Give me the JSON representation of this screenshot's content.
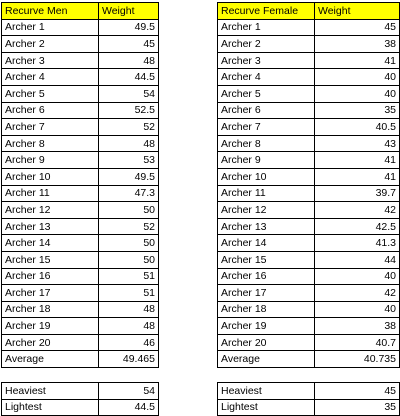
{
  "men": {
    "header": {
      "name": "Recurve Men",
      "weight": "Weight"
    },
    "rows": [
      {
        "name": "Archer 1",
        "weight": "49.5"
      },
      {
        "name": "Archer 2",
        "weight": "45"
      },
      {
        "name": "Archer 3",
        "weight": "48"
      },
      {
        "name": "Archer 4",
        "weight": "44.5"
      },
      {
        "name": "Archer 5",
        "weight": "54"
      },
      {
        "name": "Archer 6",
        "weight": "52.5"
      },
      {
        "name": "Archer 7",
        "weight": "52"
      },
      {
        "name": "Archer 8",
        "weight": "48"
      },
      {
        "name": "Archer 9",
        "weight": "53"
      },
      {
        "name": "Archer 10",
        "weight": "49.5"
      },
      {
        "name": "Archer 11",
        "weight": "47.3"
      },
      {
        "name": "Archer 12",
        "weight": "50"
      },
      {
        "name": "Archer 13",
        "weight": "52"
      },
      {
        "name": "Archer 14",
        "weight": "50"
      },
      {
        "name": "Archer 15",
        "weight": "50"
      },
      {
        "name": "Archer 16",
        "weight": "51"
      },
      {
        "name": "Archer 17",
        "weight": "51"
      },
      {
        "name": "Archer 18",
        "weight": "48"
      },
      {
        "name": "Archer 19",
        "weight": "48"
      },
      {
        "name": "Archer 20",
        "weight": "46"
      }
    ],
    "average": {
      "label": "Average",
      "value": "49.465"
    },
    "heaviest": {
      "label": "Heaviest",
      "value": "54"
    },
    "lightest": {
      "label": "Lightest",
      "value": "44.5"
    }
  },
  "female": {
    "header": {
      "name": "Recurve Female",
      "weight": "Weight"
    },
    "rows": [
      {
        "name": "Archer 1",
        "weight": "45"
      },
      {
        "name": "Archer 2",
        "weight": "38"
      },
      {
        "name": "Archer 3",
        "weight": "41"
      },
      {
        "name": "Archer 4",
        "weight": "40"
      },
      {
        "name": "Archer 5",
        "weight": "40"
      },
      {
        "name": "Archer 6",
        "weight": "35"
      },
      {
        "name": "Archer 7",
        "weight": "40.5"
      },
      {
        "name": "Archer 8",
        "weight": "43"
      },
      {
        "name": "Archer 9",
        "weight": "41"
      },
      {
        "name": "Archer 10",
        "weight": "41"
      },
      {
        "name": "Archer 11",
        "weight": "39.7"
      },
      {
        "name": "Archer 12",
        "weight": "42"
      },
      {
        "name": "Archer 13",
        "weight": "42.5"
      },
      {
        "name": "Archer 14",
        "weight": "41.3"
      },
      {
        "name": "Archer 15",
        "weight": "44"
      },
      {
        "name": "Archer 16",
        "weight": "40"
      },
      {
        "name": "Archer 17",
        "weight": "42"
      },
      {
        "name": "Archer 18",
        "weight": "40"
      },
      {
        "name": "Archer 19",
        "weight": "38"
      },
      {
        "name": "Archer 20",
        "weight": "40.7"
      }
    ],
    "average": {
      "label": "Average",
      "value": "40.735"
    },
    "heaviest": {
      "label": "Heaviest",
      "value": "45"
    },
    "lightest": {
      "label": "Lightest",
      "value": "35"
    }
  },
  "colors": {
    "header_fill": "#ffff00",
    "grid": "#000000"
  }
}
